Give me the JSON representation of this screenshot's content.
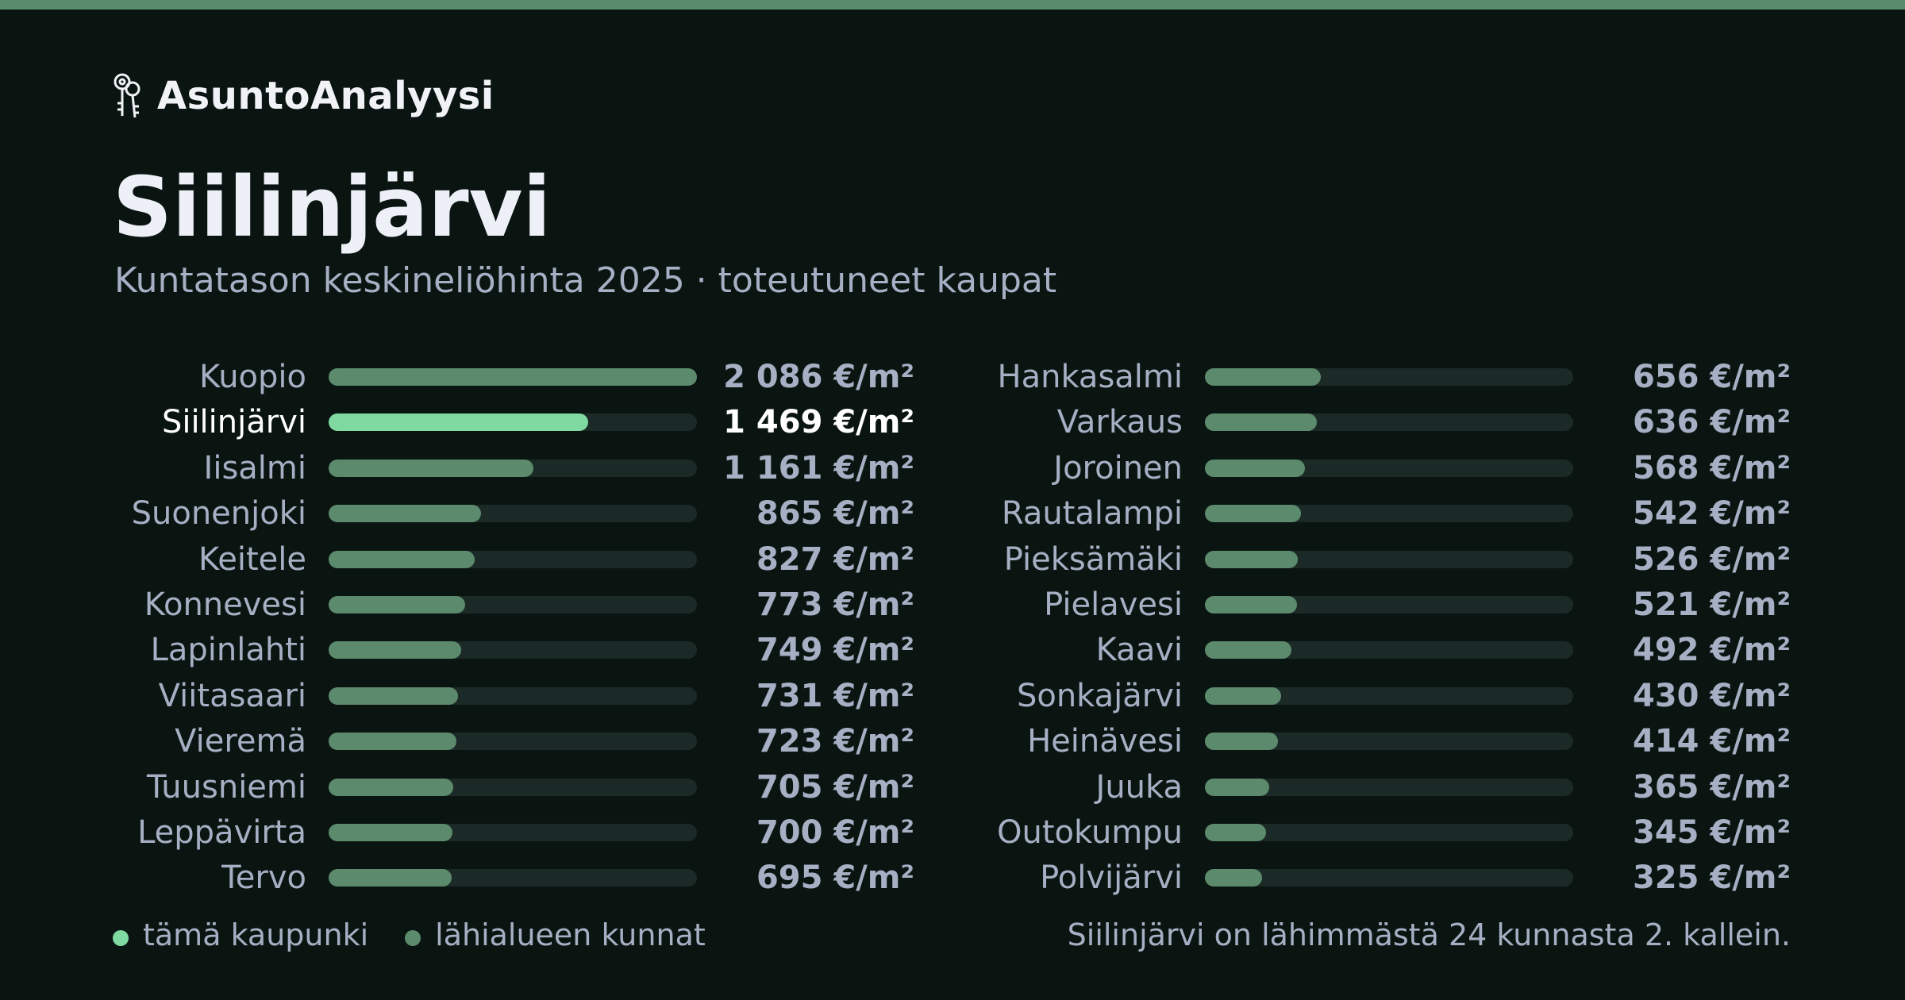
{
  "app": {
    "brand": "AsuntoAnalyysi"
  },
  "header": {
    "title": "Siilinjärvi",
    "subtitle": "Kuntatason keskineliöhinta 2025 · toteutuneet kaupat"
  },
  "colors": {
    "background": "#0a1512",
    "accent_bar": "#5a8c6c",
    "highlight": "#7fd9a0",
    "neighbor": "#5c8a6c",
    "track": "#1b2a26",
    "text_muted": "#a6afc3",
    "text_bright": "#ffffff"
  },
  "legend": {
    "items": [
      {
        "label": "tämä kaupunki",
        "color": "#7fd9a0"
      },
      {
        "label": "lähialueen kunnat",
        "color": "#5c8a6c"
      }
    ]
  },
  "footnote": "Siilinjärvi on lähimmästä 24 kunnasta 2. kallein.",
  "chart_data": {
    "type": "bar",
    "orientation": "horizontal",
    "unit": "€/m²",
    "highlight": "Siilinjärvi",
    "xlim": [
      0,
      2086
    ],
    "grid": false,
    "categories": [
      "Kuopio",
      "Siilinjärvi",
      "Iisalmi",
      "Suonenjoki",
      "Keitele",
      "Konnevesi",
      "Lapinlahti",
      "Viitasaari",
      "Vieremä",
      "Tuusniemi",
      "Leppävirta",
      "Tervo",
      "Hankasalmi",
      "Varkaus",
      "Joroinen",
      "Rautalampi",
      "Pieksämäki",
      "Pielavesi",
      "Kaavi",
      "Sonkajärvi",
      "Heinävesi",
      "Juuka",
      "Outokumpu",
      "Polvijärvi"
    ],
    "values": [
      2086,
      1469,
      1161,
      865,
      827,
      773,
      749,
      731,
      723,
      705,
      700,
      695,
      656,
      636,
      568,
      542,
      526,
      521,
      492,
      430,
      414,
      365,
      345,
      325
    ],
    "value_labels": [
      "2 086 €/m²",
      "1 469 €/m²",
      "1 161 €/m²",
      "865 €/m²",
      "827 €/m²",
      "773 €/m²",
      "749 €/m²",
      "731 €/m²",
      "723 €/m²",
      "705 €/m²",
      "700 €/m²",
      "695 €/m²",
      "656 €/m²",
      "636 €/m²",
      "568 €/m²",
      "542 €/m²",
      "526 €/m²",
      "521 €/m²",
      "492 €/m²",
      "430 €/m²",
      "414 €/m²",
      "365 €/m²",
      "345 €/m²",
      "325 €/m²"
    ]
  }
}
